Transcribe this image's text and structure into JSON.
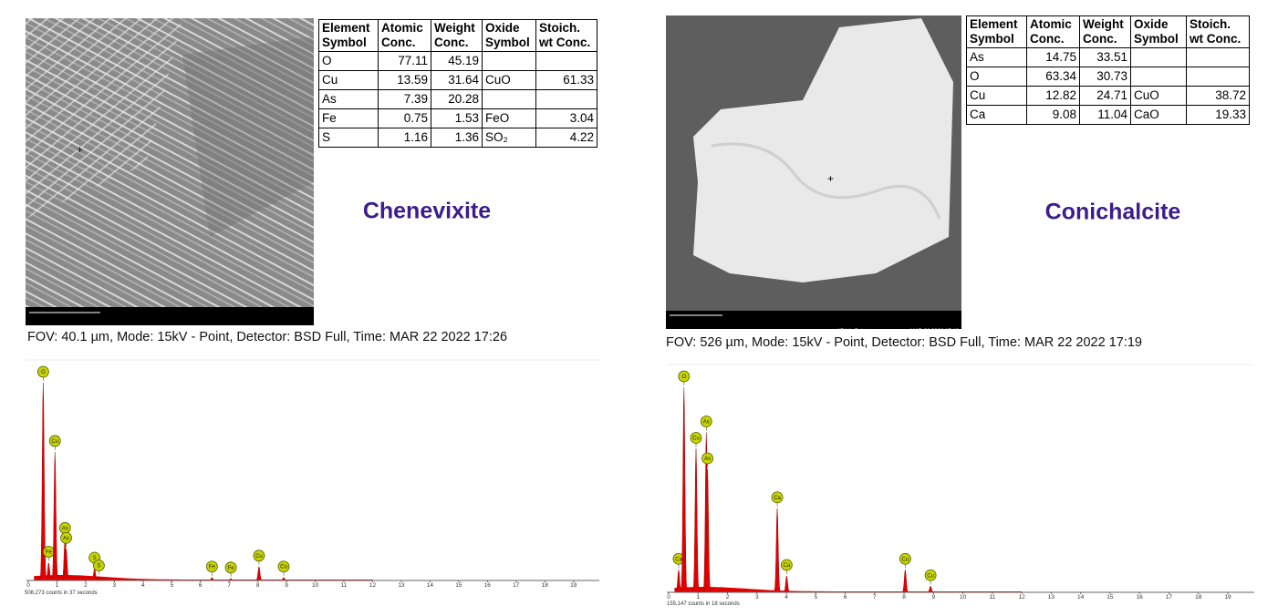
{
  "panels": [
    {
      "image": {
        "scale_bar": "10 µm",
        "fov": "40.1 µm",
        "mode": "15kV - Point",
        "timestamp": "MAR 22 2022 17:26"
      },
      "table": {
        "header": [
          "Element Symbol",
          "Atomic Conc.",
          "Weight Conc.",
          "Oxide Symbol",
          "Stoich. wt Conc."
        ],
        "rows": [
          [
            "O",
            77.11,
            45.19,
            null,
            null
          ],
          [
            "Cu",
            13.59,
            31.64,
            "CuO",
            61.33
          ],
          [
            "As",
            7.39,
            20.28,
            null,
            null
          ],
          [
            "Fe",
            0.75,
            1.53,
            "FeO",
            3.04
          ],
          [
            "S",
            1.16,
            1.36,
            "SO₂",
            4.22
          ]
        ]
      },
      "name": "Chenevixite",
      "caption": "FOV: 40.1 µm, Mode: 15kV - Point, Detector: BSD Full, Time: MAR 22 2022 17:26",
      "spectrum": {
        "xlim": [
          0,
          19.9
        ],
        "xticks": [
          0,
          1,
          2,
          3,
          4,
          5,
          6,
          7,
          8,
          9,
          10,
          11,
          12,
          13,
          14,
          15,
          16,
          17,
          18,
          19
        ],
        "peaks": [
          {
            "label": "O",
            "x": 0.52,
            "height": 100
          },
          {
            "label": "Fe",
            "x": 0.71,
            "height": 9
          },
          {
            "label": "Cu",
            "x": 0.93,
            "height": 65
          },
          {
            "label": "As",
            "x": 1.28,
            "height": 21
          },
          {
            "label": "As",
            "x": 1.32,
            "height": 16
          },
          {
            "label": "S",
            "x": 2.31,
            "height": 6
          },
          {
            "label": "S",
            "x": 2.46,
            "height": 2
          },
          {
            "label": "Fe",
            "x": 6.4,
            "height": 1.5
          },
          {
            "label": "Fe",
            "x": 7.06,
            "height": 1
          },
          {
            "label": "Cu",
            "x": 8.04,
            "height": 7
          },
          {
            "label": "Cu",
            "x": 8.9,
            "height": 1.5
          }
        ],
        "counts": "508,273 counts in 37 seconds"
      }
    },
    {
      "image": {
        "scale_bar": "100 µm",
        "fov": "526 µm",
        "mode": "15kV - Point",
        "timestamp": "MAR 22 2022 17:19"
      },
      "table": {
        "header": [
          "Element Symbol",
          "Atomic Conc.",
          "Weight Conc.",
          "Oxide Symbol",
          "Stoich. wt Conc."
        ],
        "rows": [
          [
            "As",
            14.75,
            33.51,
            null,
            null
          ],
          [
            "O",
            63.34,
            30.73,
            null,
            null
          ],
          [
            "Cu",
            12.82,
            24.71,
            "CuO",
            38.72
          ],
          [
            "Ca",
            9.08,
            11.04,
            "CaO",
            19.33
          ]
        ]
      },
      "name": "Conichalcite",
      "caption": "FOV: 526 µm, Mode: 15kV - Point, Detector: BSD Full, Time: MAR 22 2022 17:19",
      "spectrum": {
        "xlim": [
          0,
          19.9
        ],
        "xticks": [
          0,
          1,
          2,
          3,
          4,
          5,
          6,
          7,
          8,
          9,
          10,
          11,
          12,
          13,
          14,
          15,
          16,
          17,
          18,
          19
        ],
        "peaks": [
          {
            "label": "Ca",
            "x": 0.34,
            "height": 11
          },
          {
            "label": "O",
            "x": 0.52,
            "height": 100
          },
          {
            "label": "Cu",
            "x": 0.93,
            "height": 70
          },
          {
            "label": "As",
            "x": 1.28,
            "height": 78
          },
          {
            "label": "As",
            "x": 1.32,
            "height": 60
          },
          {
            "label": "Ca",
            "x": 3.69,
            "height": 41
          },
          {
            "label": "Ca",
            "x": 4.01,
            "height": 8
          },
          {
            "label": "Cu",
            "x": 8.04,
            "height": 11
          },
          {
            "label": "Cu",
            "x": 8.9,
            "height": 3
          }
        ],
        "counts": "155,147 counts in 18 seconds"
      }
    }
  ]
}
